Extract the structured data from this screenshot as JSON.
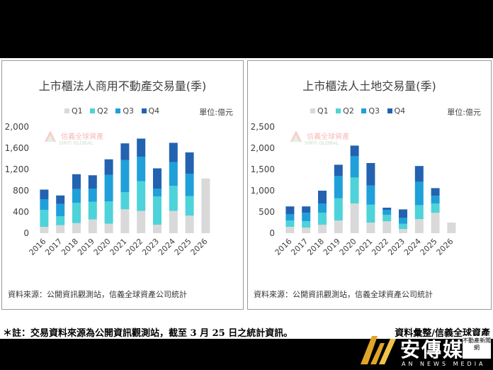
{
  "note": "＊註：交易資料來源為公開資訊觀測站，截至 3 月 25 日之統計資訊。",
  "credit": "資料彙整/信義全球資產",
  "brand": {
    "name": "安傳媒",
    "sub": "不動產新聞網",
    "en": "AN NEWS MEDIA"
  },
  "watermark": {
    "line1": "信義全球資產",
    "line2": "SINYI GLOBAL"
  },
  "legend_labels": [
    "Q1",
    "Q2",
    "Q3",
    "Q4"
  ],
  "colors": {
    "Q1": "#d9d9d9",
    "Q2": "#4dd3d9",
    "Q3": "#1fa0d9",
    "Q4": "#2362b0"
  },
  "chart_data": [
    {
      "type": "bar",
      "stacked": true,
      "title": "上市櫃法人商用不動產交易量(季)",
      "unit": "單位:億元",
      "source": "資料來源：公開資訊觀測站，信義全球資產公司統計",
      "categories": [
        "2016",
        "2017",
        "2018",
        "2019",
        "2020",
        "2021",
        "2022",
        "2023",
        "2024",
        "2025",
        "2026"
      ],
      "yticks": [
        "0",
        "400",
        "800",
        "1,200",
        "1,600",
        "2,000"
      ],
      "ylim": [
        0,
        2000
      ],
      "series": [
        {
          "name": "Q1",
          "values": [
            120,
            150,
            190,
            260,
            180,
            450,
            420,
            160,
            420,
            330,
            1030
          ]
        },
        {
          "name": "Q2",
          "values": [
            320,
            170,
            380,
            330,
            420,
            320,
            560,
            530,
            470,
            370,
            0
          ]
        },
        {
          "name": "Q3",
          "values": [
            200,
            230,
            260,
            250,
            500,
            610,
            460,
            150,
            450,
            420,
            0
          ]
        },
        {
          "name": "Q4",
          "values": [
            180,
            160,
            280,
            250,
            290,
            310,
            340,
            380,
            360,
            400,
            0
          ]
        }
      ]
    },
    {
      "type": "bar",
      "stacked": true,
      "title": "上市櫃法人土地交易量(季)",
      "unit": "單位:億元",
      "source": "資料來源：公開資訊觀測站，信義全球資產公司統計",
      "categories": [
        "2016",
        "2017",
        "2018",
        "2019",
        "2020",
        "2021",
        "2022",
        "2023",
        "2024",
        "2025",
        "2026"
      ],
      "yticks": [
        "0",
        "500",
        "1,000",
        "1,500",
        "2,000",
        "2,500"
      ],
      "ylim": [
        0,
        2500
      ],
      "series": [
        {
          "name": "Q1",
          "values": [
            150,
            130,
            200,
            300,
            700,
            250,
            280,
            100,
            330,
            480,
            250
          ]
        },
        {
          "name": "Q2",
          "values": [
            150,
            150,
            280,
            520,
            610,
            420,
            150,
            120,
            330,
            220,
            0
          ]
        },
        {
          "name": "Q3",
          "values": [
            150,
            200,
            220,
            530,
            500,
            450,
            120,
            140,
            550,
            180,
            0
          ]
        },
        {
          "name": "Q4",
          "values": [
            180,
            150,
            300,
            260,
            250,
            530,
            50,
            200,
            370,
            180,
            0
          ]
        }
      ]
    }
  ]
}
